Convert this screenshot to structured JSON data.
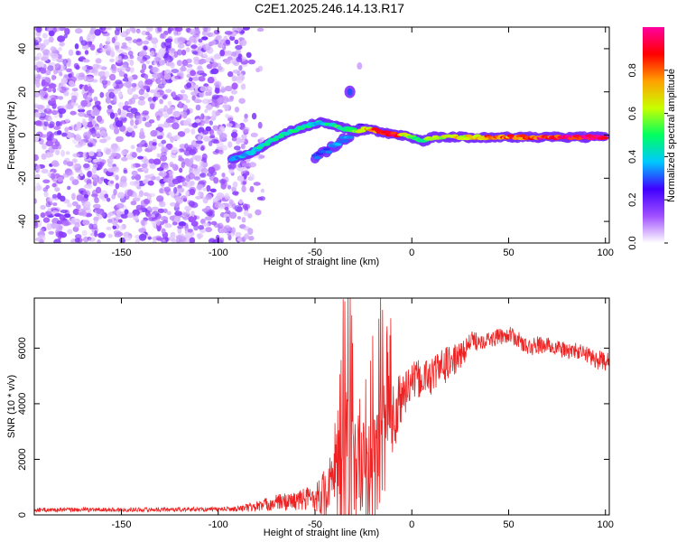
{
  "title": "C2E1.2025.246.14.13.R17",
  "chart_data": [
    {
      "type": "heatmap",
      "name": "spectrogram",
      "xlabel": "Height of straight line (km)",
      "ylabel": "Frequency (Hz)",
      "xlim": [
        -195,
        102
      ],
      "ylim": [
        -50,
        50
      ],
      "xticks": [
        -150,
        -100,
        -50,
        0,
        50,
        100
      ],
      "yticks": [
        -40,
        -20,
        0,
        20,
        40
      ],
      "xtick_labels": [
        "-150",
        "-100",
        "-50",
        "0",
        "50",
        "100"
      ],
      "ytick_labels": [
        "-40",
        "-20",
        "0",
        "20",
        "40"
      ],
      "noise_region_x": [
        -195,
        -85
      ],
      "signal_track": {
        "x": [
          -93,
          -85,
          -75,
          -65,
          -55,
          -48,
          -42,
          -35,
          -28,
          -22,
          -15,
          -8,
          -2,
          2,
          6,
          10,
          20,
          30,
          40,
          50,
          60,
          70,
          80,
          90,
          100
        ],
        "freq": [
          -11,
          -9,
          -4,
          1,
          4,
          6,
          5,
          3,
          2,
          3,
          1,
          0,
          0,
          -2,
          -3,
          -1,
          -1,
          -1,
          -1,
          -1,
          -1,
          -1,
          -1,
          -1,
          -1
        ],
        "amplitude": [
          0.35,
          0.38,
          0.45,
          0.45,
          0.45,
          0.4,
          0.45,
          0.5,
          0.6,
          0.7,
          0.85,
          0.9,
          0.6,
          0.45,
          0.5,
          0.6,
          0.65,
          0.7,
          0.75,
          0.8,
          0.85,
          0.9,
          0.92,
          0.95,
          0.95
        ]
      },
      "branch_track": {
        "x": [
          -50,
          -45,
          -40,
          -35,
          -30,
          -25
        ],
        "freq": [
          -10,
          -8,
          -5,
          -2,
          1,
          5
        ],
        "amplitude": [
          0.3,
          0.3,
          0.35,
          0.35,
          0.3,
          0.25
        ]
      },
      "blob_at_-32km_20Hz": {
        "x": -32,
        "freq": 20,
        "amplitude": 0.3
      }
    },
    {
      "type": "colorbar",
      "label": "Normalized spectral amplitude",
      "range": [
        0,
        1
      ],
      "ticks": [
        0,
        0.2,
        0.4,
        0.6,
        0.8
      ],
      "tick_labels": [
        "0.0",
        "0.2",
        "0.4",
        "0.6",
        "0.8"
      ],
      "colors": [
        "#ffffff",
        "#a050ff",
        "#4000ff",
        "#00c8ff",
        "#00ff60",
        "#c8ff00",
        "#ffa000",
        "#ff0000",
        "#ff00a0"
      ]
    },
    {
      "type": "line",
      "name": "snr",
      "xlabel": "Height of straight line (km)",
      "ylabel": "SNR (10 * v/v)",
      "xlim": [
        -195,
        102
      ],
      "ylim": [
        0,
        7800
      ],
      "xticks": [
        -150,
        -100,
        -50,
        0,
        50,
        100
      ],
      "yticks": [
        0,
        2000,
        4000,
        6000
      ],
      "xtick_labels": [
        "-150",
        "-100",
        "-50",
        "0",
        "50",
        "100"
      ],
      "ytick_labels": [
        "0",
        "2000",
        "4000",
        "6000"
      ],
      "color": "#ee2222",
      "envelope": {
        "x": [
          -195,
          -100,
          -90,
          -80,
          -70,
          -60,
          -50,
          -45,
          -40,
          -37,
          -35,
          -32,
          -30,
          -27,
          -25,
          -22,
          -20,
          -17,
          -15,
          -12,
          -10,
          -7,
          -5,
          -2,
          0,
          5,
          10,
          15,
          20,
          25,
          30,
          35,
          40,
          45,
          50,
          55,
          60,
          65,
          70,
          75,
          80,
          85,
          90,
          95,
          100
        ],
        "base": [
          180,
          200,
          220,
          300,
          450,
          500,
          650,
          800,
          1000,
          1300,
          1600,
          1700,
          1600,
          1300,
          1500,
          1300,
          1600,
          2200,
          2500,
          3000,
          3500,
          3800,
          4300,
          4600,
          4800,
          4900,
          5000,
          5300,
          5500,
          5700,
          6200,
          6300,
          6300,
          6400,
          6500,
          6300,
          6000,
          6100,
          6100,
          6000,
          5900,
          5900,
          5800,
          5600,
          5500
        ],
        "amp": [
          80,
          80,
          100,
          200,
          300,
          350,
          500,
          900,
          1500,
          2500,
          3000,
          3000,
          2500,
          1500,
          2200,
          2000,
          2500,
          3000,
          3000,
          2200,
          1500,
          1200,
          1000,
          800,
          700,
          700,
          700,
          700,
          600,
          500,
          400,
          350,
          300,
          300,
          300,
          300,
          300,
          350,
          300,
          300,
          300,
          300,
          300,
          350,
          350
        ]
      }
    }
  ]
}
